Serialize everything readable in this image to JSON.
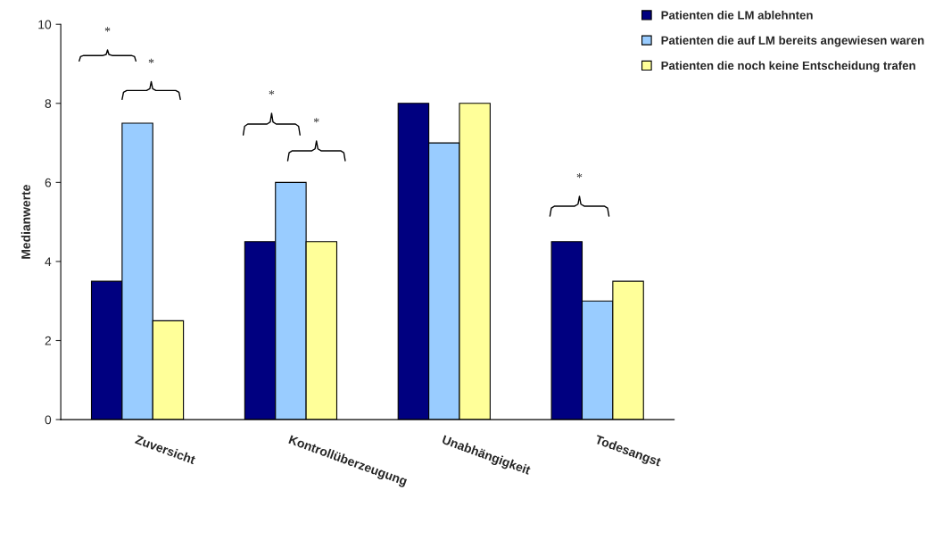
{
  "chart_data": {
    "type": "bar",
    "ylabel": "Medianwerte",
    "categories": [
      "Zuversicht",
      "Kontrollüberzeugung",
      "Unabhängigkeit",
      "Todesangst"
    ],
    "series": [
      {
        "name": "Patienten die LM ablehnten",
        "color": "#000080",
        "values": [
          3.5,
          4.5,
          8,
          4.5
        ]
      },
      {
        "name": "Patienten die auf LM bereits angewiesen waren",
        "color": "#99ccff",
        "values": [
          7.5,
          6,
          7,
          3
        ]
      },
      {
        "name": "Patienten die noch keine Entscheidung trafen",
        "color": "#ffff99",
        "values": [
          2.5,
          4.5,
          8,
          3.5
        ]
      }
    ],
    "ylim": [
      0,
      10
    ],
    "yticks": [
      0,
      2,
      4,
      6,
      8,
      10
    ],
    "grid": false,
    "legend": "top right",
    "annotations": [
      "*",
      "*",
      "*",
      "*",
      "*"
    ]
  }
}
